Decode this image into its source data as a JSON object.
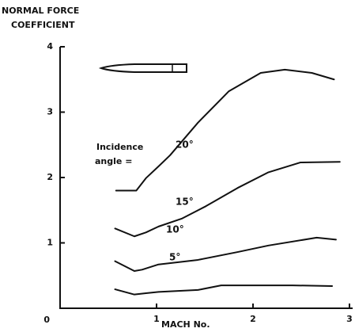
{
  "chart_data": {
    "type": "line",
    "ylabel": [
      "NORMAL FORCE",
      "COEFFICIENT"
    ],
    "xlabel": "MACH No.",
    "annotation": [
      "Incidence",
      "angle ="
    ],
    "xlim": [
      0,
      3
    ],
    "xticks": [
      1,
      2,
      3
    ],
    "ylim": [
      0,
      4
    ],
    "yticks": [
      0,
      1,
      2,
      3,
      4
    ],
    "series": [
      {
        "name": "20°",
        "color": "#111111",
        "x": [
          0.58,
          0.79,
          0.89,
          1.02,
          1.14,
          1.43,
          1.75,
          2.08,
          2.33,
          2.61,
          2.84
        ],
        "values": [
          1.8,
          1.8,
          1.99,
          2.17,
          2.34,
          2.84,
          3.32,
          3.6,
          3.65,
          3.6,
          3.5
        ]
      },
      {
        "name": "15°",
        "color": "#111111",
        "x": [
          0.57,
          0.77,
          0.89,
          1.02,
          1.26,
          1.51,
          1.84,
          2.16,
          2.49,
          2.9
        ],
        "values": [
          1.22,
          1.1,
          1.16,
          1.25,
          1.37,
          1.56,
          1.84,
          2.08,
          2.23,
          2.24
        ]
      },
      {
        "name": "10°",
        "color": "#111111",
        "x": [
          0.57,
          0.77,
          0.85,
          1.02,
          1.43,
          1.84,
          2.16,
          2.66,
          2.86
        ],
        "values": [
          0.72,
          0.57,
          0.59,
          0.67,
          0.74,
          0.86,
          0.96,
          1.08,
          1.05
        ]
      },
      {
        "name": "5°",
        "color": "#111111",
        "x": [
          0.57,
          0.77,
          0.89,
          1.02,
          1.43,
          1.67,
          2.0,
          2.41,
          2.82
        ],
        "values": [
          0.29,
          0.21,
          0.23,
          0.25,
          0.28,
          0.35,
          0.35,
          0.35,
          0.34
        ]
      }
    ]
  }
}
